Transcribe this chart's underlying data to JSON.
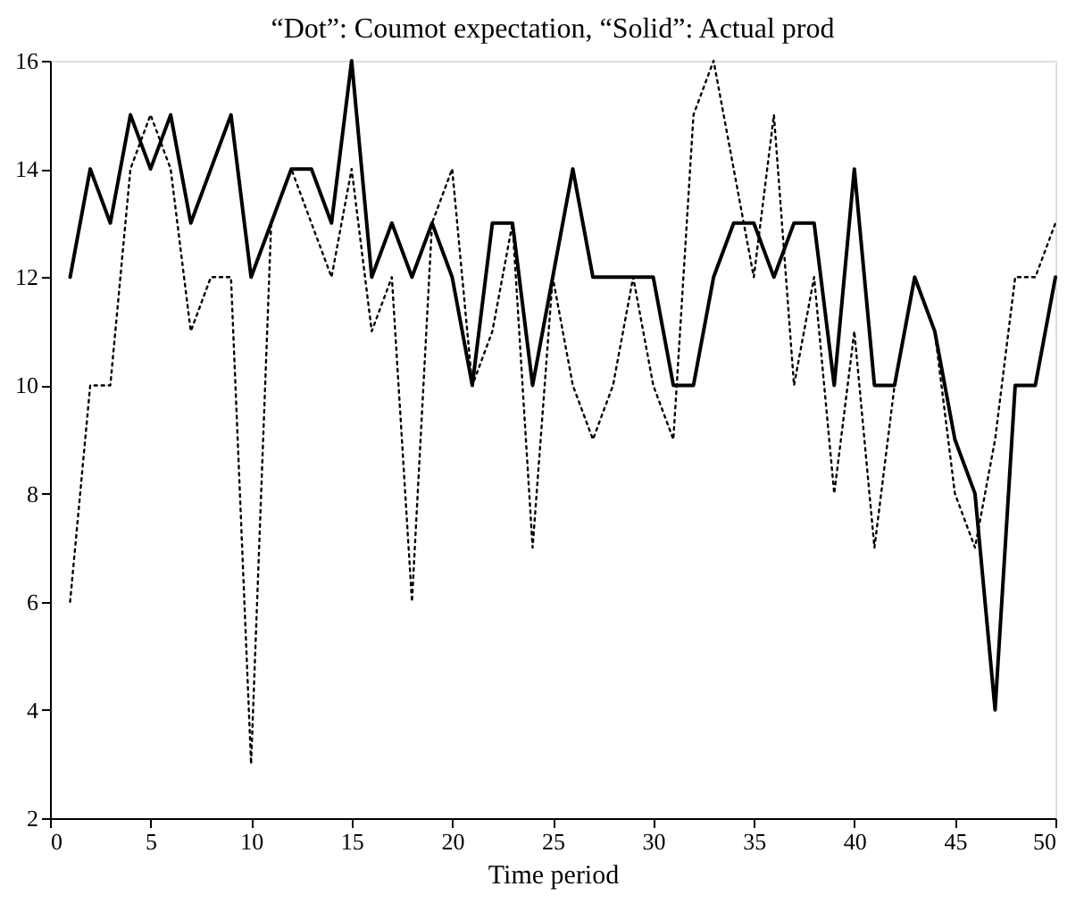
{
  "chart_data": {
    "type": "line",
    "title": "“Dot”: Coumot expectation, “Solid”: Actual prod",
    "xlabel": "Time period",
    "x": [
      1,
      2,
      3,
      4,
      5,
      6,
      7,
      8,
      9,
      10,
      11,
      12,
      13,
      14,
      15,
      16,
      17,
      18,
      19,
      20,
      21,
      22,
      23,
      24,
      25,
      26,
      27,
      28,
      29,
      30,
      31,
      32,
      33,
      34,
      35,
      36,
      37,
      38,
      39,
      40,
      41,
      42,
      43,
      44,
      45,
      46,
      47,
      48,
      49,
      50
    ],
    "series": [
      {
        "color": "#000000",
        "line_style": "dotted",
        "values": [
          6,
          10,
          10,
          14,
          15,
          14,
          11,
          12,
          12,
          3,
          13,
          14,
          13,
          12,
          14,
          11,
          12,
          6,
          13,
          14,
          10,
          11,
          13,
          7,
          12,
          10,
          9,
          10,
          12,
          10,
          9,
          15,
          16,
          14,
          12,
          15,
          10,
          12,
          8,
          11,
          7,
          10,
          12,
          11,
          8,
          7,
          9,
          12,
          12,
          13
        ]
      },
      {
        "color": "#000000",
        "line_style": "solid",
        "values": [
          12,
          14,
          13,
          15,
          14,
          15,
          13,
          14,
          15,
          12,
          13,
          14,
          14,
          13,
          16,
          12,
          13,
          12,
          13,
          12,
          10,
          13,
          13,
          10,
          12,
          14,
          12,
          12,
          12,
          12,
          10,
          10,
          12,
          13,
          13,
          12,
          13,
          13,
          10,
          14,
          10,
          10,
          12,
          11,
          9,
          8,
          4,
          10,
          10,
          12
        ]
      }
    ],
    "xlim": [
      0,
      50
    ],
    "ylim": [
      2,
      16
    ],
    "xticks": [
      0,
      5,
      10,
      15,
      20,
      25,
      30,
      35,
      40,
      45,
      50
    ],
    "yticks": [
      2,
      4,
      6,
      8,
      10,
      12,
      14,
      16
    ],
    "grid": false
  }
}
